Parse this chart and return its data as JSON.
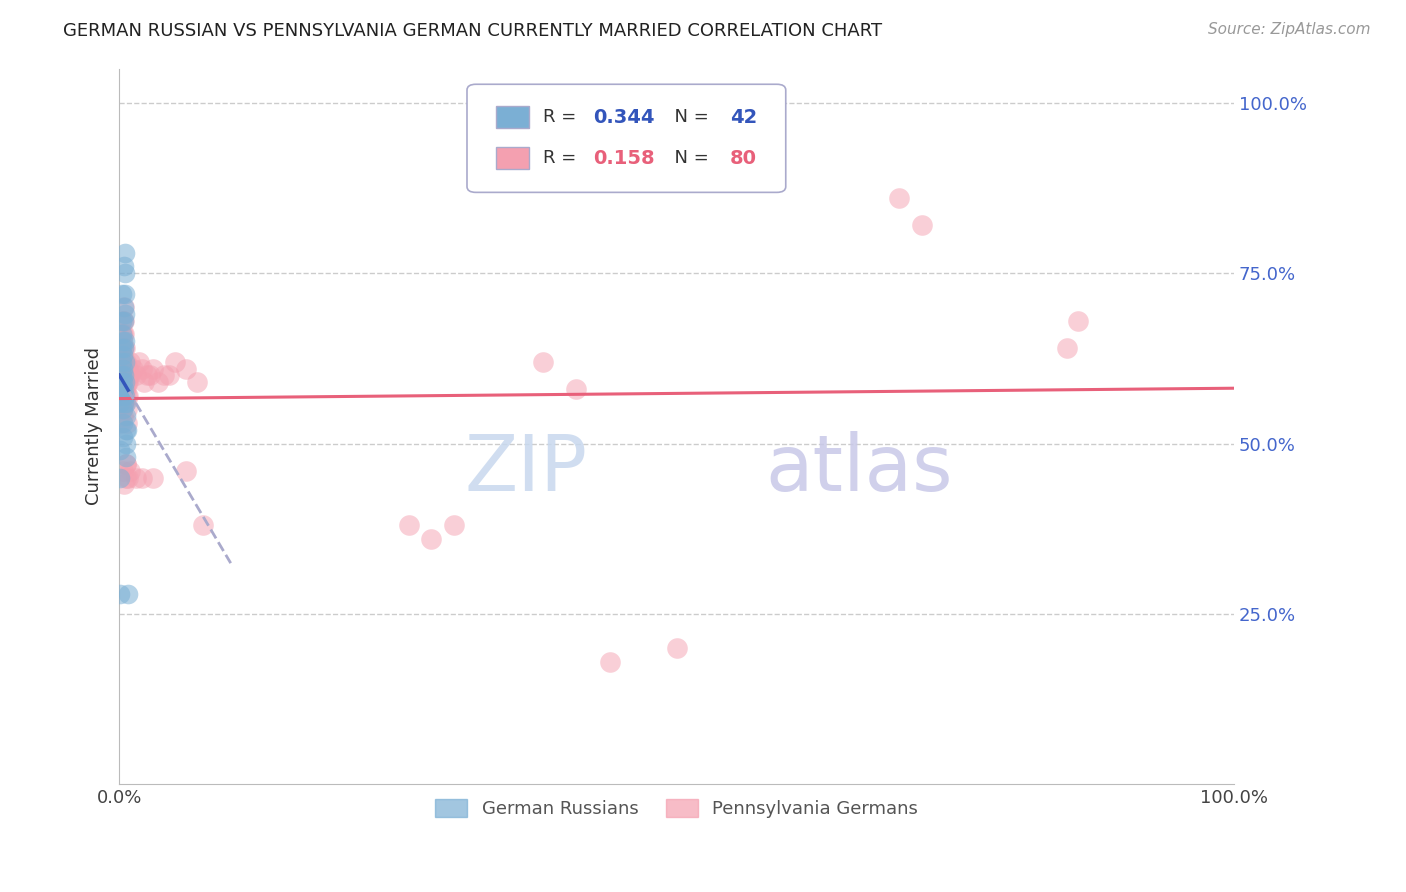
{
  "title": "GERMAN RUSSIAN VS PENNSYLVANIA GERMAN CURRENTLY MARRIED CORRELATION CHART",
  "source": "Source: ZipAtlas.com",
  "ylabel": "Currently Married",
  "watermark_zip": "ZIP",
  "watermark_atlas": "atlas",
  "blue_color": "#7BAFD4",
  "pink_color": "#F4A0B0",
  "blue_line_color": "#3355BB",
  "pink_line_color": "#E8607A",
  "dashed_color": "#AAAACC",
  "grid_color": "#CCCCCC",
  "ytick_color": "#4466CC",
  "blue_scatter": [
    [
      0.001,
      0.57
    ],
    [
      0.001,
      0.56
    ],
    [
      0.002,
      0.72
    ],
    [
      0.002,
      0.68
    ],
    [
      0.002,
      0.66
    ],
    [
      0.002,
      0.64
    ],
    [
      0.002,
      0.62
    ],
    [
      0.002,
      0.6
    ],
    [
      0.002,
      0.58
    ],
    [
      0.003,
      0.65
    ],
    [
      0.003,
      0.63
    ],
    [
      0.003,
      0.61
    ],
    [
      0.003,
      0.59
    ],
    [
      0.003,
      0.57
    ],
    [
      0.003,
      0.55
    ],
    [
      0.003,
      0.53
    ],
    [
      0.003,
      0.51
    ],
    [
      0.004,
      0.76
    ],
    [
      0.004,
      0.7
    ],
    [
      0.004,
      0.68
    ],
    [
      0.004,
      0.64
    ],
    [
      0.004,
      0.6
    ],
    [
      0.004,
      0.58
    ],
    [
      0.004,
      0.56
    ],
    [
      0.005,
      0.78
    ],
    [
      0.005,
      0.75
    ],
    [
      0.005,
      0.72
    ],
    [
      0.005,
      0.69
    ],
    [
      0.005,
      0.65
    ],
    [
      0.005,
      0.62
    ],
    [
      0.005,
      0.59
    ],
    [
      0.005,
      0.57
    ],
    [
      0.006,
      0.56
    ],
    [
      0.006,
      0.54
    ],
    [
      0.006,
      0.52
    ],
    [
      0.006,
      0.5
    ],
    [
      0.006,
      0.48
    ],
    [
      0.001,
      0.28
    ],
    [
      0.008,
      0.28
    ],
    [
      0.001,
      0.45
    ],
    [
      0.001,
      0.49
    ],
    [
      0.007,
      0.52
    ]
  ],
  "pink_scatter": [
    [
      0.001,
      0.59
    ],
    [
      0.001,
      0.57
    ],
    [
      0.001,
      0.55
    ],
    [
      0.001,
      0.53
    ],
    [
      0.002,
      0.66
    ],
    [
      0.002,
      0.63
    ],
    [
      0.002,
      0.61
    ],
    [
      0.002,
      0.59
    ],
    [
      0.002,
      0.57
    ],
    [
      0.002,
      0.55
    ],
    [
      0.003,
      0.68
    ],
    [
      0.003,
      0.66
    ],
    [
      0.003,
      0.64
    ],
    [
      0.003,
      0.62
    ],
    [
      0.003,
      0.6
    ],
    [
      0.003,
      0.58
    ],
    [
      0.003,
      0.56
    ],
    [
      0.003,
      0.54
    ],
    [
      0.004,
      0.7
    ],
    [
      0.004,
      0.68
    ],
    [
      0.004,
      0.66
    ],
    [
      0.004,
      0.64
    ],
    [
      0.004,
      0.62
    ],
    [
      0.004,
      0.6
    ],
    [
      0.004,
      0.58
    ],
    [
      0.004,
      0.56
    ],
    [
      0.005,
      0.64
    ],
    [
      0.005,
      0.62
    ],
    [
      0.005,
      0.6
    ],
    [
      0.005,
      0.58
    ],
    [
      0.005,
      0.56
    ],
    [
      0.006,
      0.62
    ],
    [
      0.006,
      0.6
    ],
    [
      0.006,
      0.58
    ],
    [
      0.006,
      0.47
    ],
    [
      0.006,
      0.45
    ],
    [
      0.007,
      0.59
    ],
    [
      0.007,
      0.57
    ],
    [
      0.007,
      0.55
    ],
    [
      0.007,
      0.53
    ],
    [
      0.008,
      0.61
    ],
    [
      0.008,
      0.59
    ],
    [
      0.008,
      0.57
    ],
    [
      0.009,
      0.6
    ],
    [
      0.01,
      0.62
    ],
    [
      0.01,
      0.6
    ],
    [
      0.012,
      0.61
    ],
    [
      0.015,
      0.6
    ],
    [
      0.018,
      0.62
    ],
    [
      0.02,
      0.61
    ],
    [
      0.022,
      0.59
    ],
    [
      0.025,
      0.6
    ],
    [
      0.028,
      0.6
    ],
    [
      0.03,
      0.61
    ],
    [
      0.035,
      0.59
    ],
    [
      0.04,
      0.6
    ],
    [
      0.045,
      0.6
    ],
    [
      0.05,
      0.62
    ],
    [
      0.06,
      0.61
    ],
    [
      0.07,
      0.59
    ],
    [
      0.003,
      0.46
    ],
    [
      0.004,
      0.44
    ],
    [
      0.006,
      0.47
    ],
    [
      0.008,
      0.45
    ],
    [
      0.01,
      0.46
    ],
    [
      0.015,
      0.45
    ],
    [
      0.02,
      0.45
    ],
    [
      0.03,
      0.45
    ],
    [
      0.06,
      0.46
    ],
    [
      0.075,
      0.38
    ],
    [
      0.26,
      0.38
    ],
    [
      0.28,
      0.36
    ],
    [
      0.3,
      0.38
    ],
    [
      0.38,
      0.62
    ],
    [
      0.41,
      0.58
    ],
    [
      0.44,
      0.18
    ],
    [
      0.5,
      0.2
    ],
    [
      0.7,
      0.86
    ],
    [
      0.72,
      0.82
    ],
    [
      0.85,
      0.64
    ],
    [
      0.86,
      0.68
    ]
  ],
  "xlim": [
    0.0,
    1.0
  ],
  "ylim": [
    0.0,
    1.05
  ],
  "xtick_positions": [
    0.0,
    0.1,
    0.2,
    0.3,
    0.4,
    0.5,
    0.6,
    0.7,
    0.8,
    0.9,
    1.0
  ],
  "ytick_positions": [
    0.25,
    0.5,
    0.75,
    1.0
  ],
  "ytick_labels": [
    "25.0%",
    "50.0%",
    "75.0%",
    "100.0%"
  ]
}
